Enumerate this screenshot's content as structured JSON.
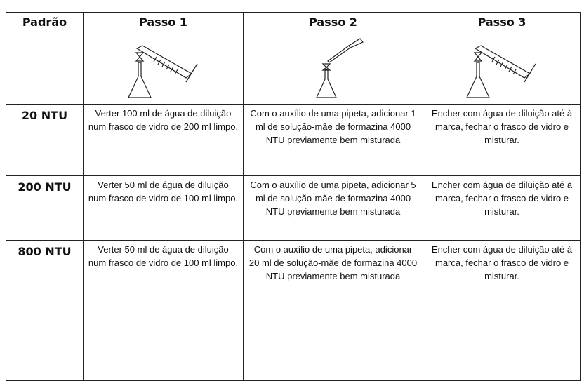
{
  "table": {
    "header": [
      "Padrão",
      "Passo 1",
      "Passo 2",
      "Passo 3"
    ],
    "rows": [
      [
        "20 NTU",
        "Verter 100 ml de água de diluição num frasco de vidro de 200 ml limpo.",
        "Com o auxílio de uma pipeta, adicionar 1 ml de solução-mãe de formazina 4000 NTU previamente bem misturada",
        "Encher com água de diluição até à marca, fechar o frasco de vidro e misturar."
      ],
      [
        "200 NTU",
        "Verter 50 ml de água de diluição num frasco de vidro de 100 ml limpo.",
        "Com o auxílio de uma pipeta, adicionar 5 ml de solução-mãe de formazina 4000 NTU previamente bem misturada",
        "Encher com água de diluição até à marca, fechar o frasco de vidro e misturar."
      ],
      [
        "800 NTU",
        "Verter 50 ml de água de diluição num frasco de vidro de 100 ml limpo.",
        "Com o auxílio de uma pipeta, adicionar 20 ml de solução-mãe de formazina 4000 NTU previamente bem misturada",
        "Encher com água de diluição até à marca, fechar o frasco de vidro e misturar."
      ]
    ]
  }
}
